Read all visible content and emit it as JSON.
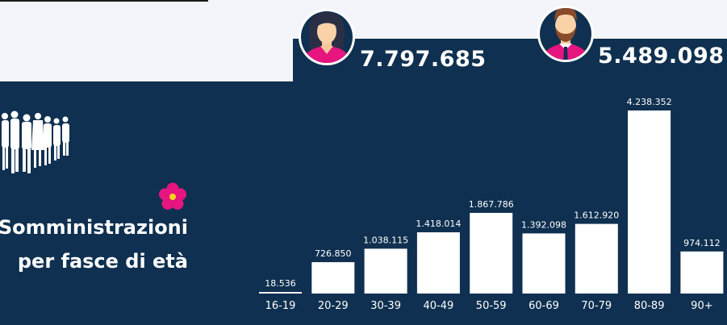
{
  "header": {
    "women_count": "7.797.685",
    "men_count": "5.489.098",
    "women_icon": "woman-avatar-icon",
    "men_icon": "man-avatar-icon"
  },
  "left_panel": {
    "title_line1": "Somministrazioni",
    "title_line2": "per fasce di età",
    "flower_icon": "primrose-flower-icon",
    "people_icon": "people-crowd-icon"
  },
  "colors": {
    "background": "#0f3050",
    "bar": "#ffffff",
    "accent_pink": "#e6157f",
    "light": "#f3f5fa"
  },
  "chart_data": {
    "type": "bar",
    "categories": [
      "16-19",
      "20-29",
      "30-39",
      "40-49",
      "50-59",
      "60-69",
      "70-79",
      "80-89",
      "90+"
    ],
    "values": [
      18536,
      726850,
      1038115,
      1418014,
      1867786,
      1392098,
      1612920,
      4238352,
      974112
    ],
    "value_labels": [
      "18.536",
      "726.850",
      "1.038.115",
      "1.418.014",
      "1.867.786",
      "1.392.098",
      "1.612.920",
      "4.238.352",
      "974.112"
    ],
    "title": "",
    "xlabel": "",
    "ylabel": "",
    "ylim": [
      0,
      4238352
    ],
    "grid": false,
    "legend": "none"
  }
}
